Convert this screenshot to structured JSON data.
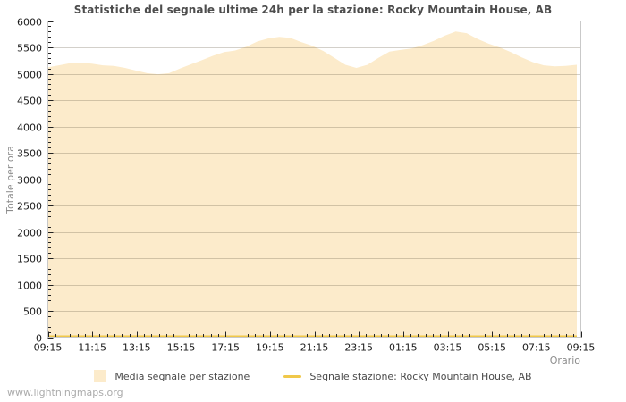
{
  "title": "Statistiche del segnale ultime 24h per la stazione: Rocky Mountain House, AB",
  "watermark": "www.lightningmaps.org",
  "colors": {
    "area_fill": "#fcebcb",
    "station_line": "#f0c84a",
    "grid_line": "rgba(110,100,80,0.30)",
    "plot_frame": "#c9c9c9",
    "tick": "#222222",
    "tick_label": "#1a1a1a",
    "axis_title": "#8c8c8c",
    "title_text": "#4d4d4d"
  },
  "chart_data": {
    "type": "area",
    "title": "Statistiche del segnale ultime 24h per la stazione: Rocky Mountain House, AB",
    "xlabel": "Orario",
    "ylabel": "Totale per ora",
    "ylim": [
      0,
      6000
    ],
    "ytick_step": 500,
    "y_minor_step": 100,
    "x_tick_labels": [
      "09:15",
      "11:15",
      "13:15",
      "15:15",
      "17:15",
      "19:15",
      "21:15",
      "23:15",
      "01:15",
      "03:15",
      "05:15",
      "07:15",
      "09:15"
    ],
    "x_major_step_minutes": 120,
    "x_minor_step_minutes": 20,
    "x_total_minutes": 1440,
    "x_start": "09:15",
    "x_step_minutes": 30,
    "grid": "horizontal",
    "legend_position": "bottom",
    "series": [
      {
        "name": "Media segnale per stazione",
        "type": "area",
        "color": "#fcebcb",
        "values": [
          5120,
          5160,
          5200,
          5210,
          5190,
          5160,
          5150,
          5110,
          5060,
          5010,
          4990,
          5010,
          5100,
          5180,
          5260,
          5340,
          5410,
          5440,
          5510,
          5610,
          5670,
          5700,
          5680,
          5600,
          5530,
          5430,
          5300,
          5170,
          5110,
          5170,
          5300,
          5420,
          5450,
          5480,
          5540,
          5620,
          5720,
          5800,
          5770,
          5660,
          5570,
          5500,
          5410,
          5310,
          5220,
          5160,
          5140,
          5150,
          5170
        ]
      },
      {
        "name": "Segnale stazione: Rocky Mountain House, AB",
        "type": "line",
        "color": "#f0c84a",
        "constant_value": 0
      }
    ]
  },
  "legend": {
    "items": [
      {
        "label": "Media segnale per stazione"
      },
      {
        "label": "Segnale stazione: Rocky Mountain House, AB"
      }
    ]
  }
}
